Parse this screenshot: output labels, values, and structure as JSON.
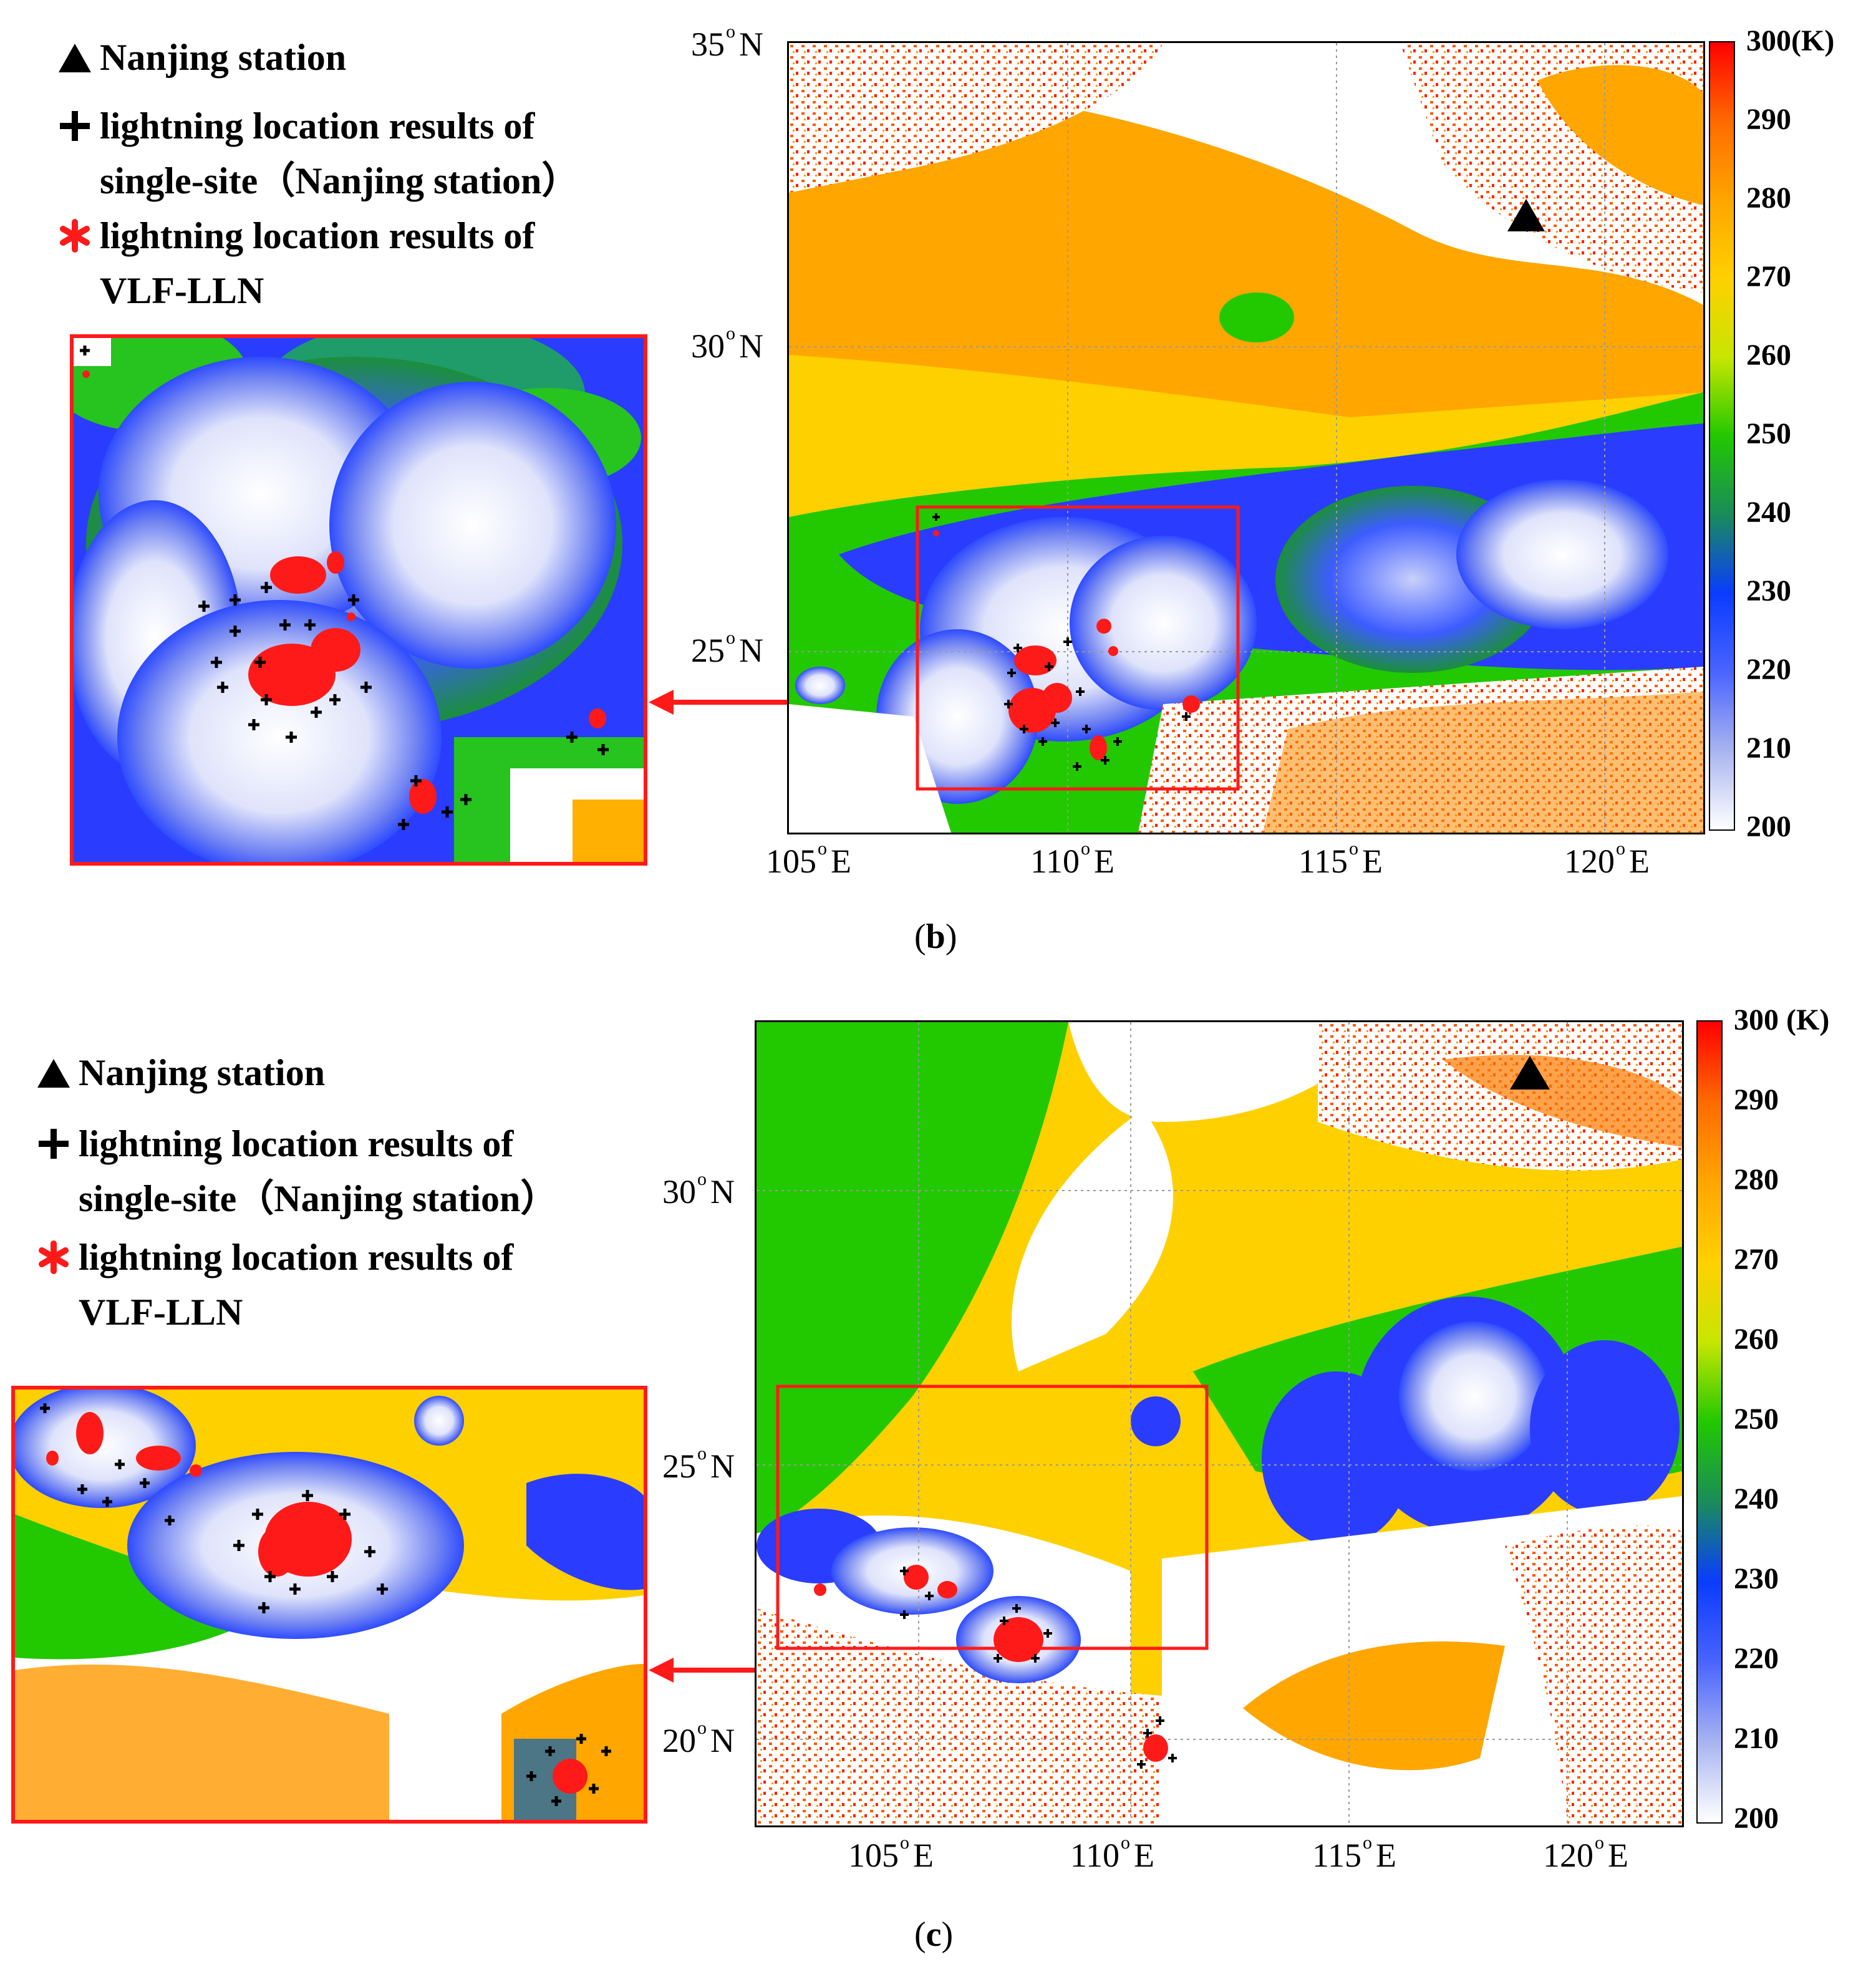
{
  "panels": [
    {
      "label_open": "(",
      "label_letter": "b",
      "label_close": ")",
      "legend": {
        "station": "Nanjing station",
        "single_site_line1": "lightning location results of",
        "single_site_line2": "single-site（Nanjing station）",
        "vlf_line1": "lightning location results of",
        "vlf_line2": "VLF-LLN"
      },
      "lat_labels": [
        "35",
        "30",
        "25"
      ],
      "lon_labels": [
        "105",
        "110",
        "115",
        "120"
      ],
      "lat_suffix": "N",
      "lon_suffix": "E",
      "colorbar_ticks": [
        "300",
        "290",
        "280",
        "270",
        "260",
        "250",
        "240",
        "230",
        "220",
        "210",
        "200"
      ],
      "colorbar_unit": "(K)"
    },
    {
      "label_open": "(",
      "label_letter": "c",
      "label_close": ")",
      "legend": {
        "station": "Nanjing station",
        "single_site_line1": "lightning location results of",
        "single_site_line2": "single-site（Nanjing station）",
        "vlf_line1": "lightning location results of",
        "vlf_line2": "VLF-LLN"
      },
      "lat_labels": [
        "30",
        "25",
        "20"
      ],
      "lon_labels": [
        "105",
        "110",
        "115",
        "120"
      ],
      "lat_suffix": "N",
      "lon_suffix": "E",
      "colorbar_ticks": [
        "300",
        "290",
        "280",
        "270",
        "260",
        "250",
        "240",
        "230",
        "220",
        "210",
        "200"
      ],
      "colorbar_unit": "(K)"
    }
  ],
  "colors": {
    "colorbar_stops": [
      "#ff0000",
      "#ff6a00",
      "#ffa500",
      "#ffd000",
      "#c8e600",
      "#22c800",
      "#1a8c5a",
      "#0a3cff",
      "#4a64ff",
      "#a8b4f0",
      "#ffffff"
    ],
    "lightning_vlf": "#ff1a1a",
    "lightning_single": "#000000",
    "inset_border": "#ff1a1a",
    "station_marker": "#000000"
  },
  "icons": {
    "station": "triangle-icon",
    "single_site": "plus-icon",
    "vlf": "asterisk-icon"
  }
}
